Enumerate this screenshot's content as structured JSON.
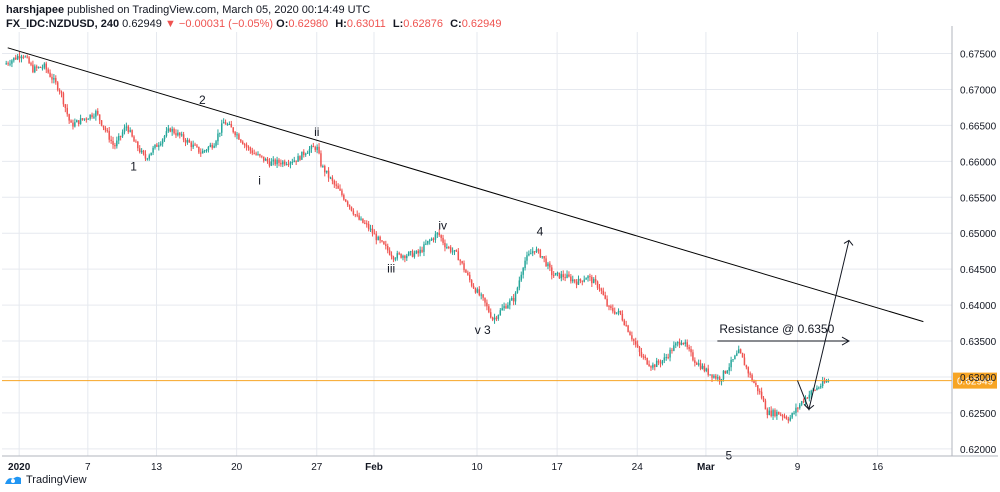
{
  "header": {
    "author": "harshjapee",
    "published": "published on TradingView.com, March 05, 2020 00:14:49 UTC"
  },
  "ohlc": {
    "symbol": "FX_IDC:NZDUSD, 240",
    "last": "0.62949",
    "change": "▼ −0.00031 (−0.05%)",
    "o_label": "O:",
    "o": "0.62980",
    "h_label": "H:",
    "h": "0.63011",
    "l_label": "L:",
    "l": "0.62876",
    "c_label": "C:",
    "c": "0.62949"
  },
  "footer": {
    "brand": "TradingView"
  },
  "colors": {
    "up": "#26a69a",
    "down": "#ef5350",
    "price_line": "#f7a525",
    "grid": "#e6e9ef",
    "trend": "#000000"
  },
  "chart_data": {
    "type": "candlestick",
    "title": "FX_IDC:NZDUSD, 240",
    "y_ticks": [
      "0.67500",
      "0.67000",
      "0.66500",
      "0.66000",
      "0.65500",
      "0.65000",
      "0.64500",
      "0.64000",
      "0.63500",
      "0.63000",
      "0.62500",
      "0.62000"
    ],
    "ylim": [
      0.619,
      0.678
    ],
    "x_ticks": [
      "2020",
      "7",
      "13",
      "20",
      "27",
      "Feb",
      "10",
      "17",
      "24",
      "Mar",
      "9",
      "16"
    ],
    "x_tick_days": [
      1,
      7,
      13,
      20,
      27,
      32,
      41,
      48,
      55,
      61,
      69,
      76
    ],
    "xlim": [
      -0.5,
      82.5
    ],
    "last_price": 0.62949,
    "last_price_label": "0.62949",
    "close_path": [
      [
        -0.3,
        0.6735
      ],
      [
        1.3,
        0.675
      ],
      [
        2.2,
        0.6728
      ],
      [
        3.2,
        0.6732
      ],
      [
        4.6,
        0.6698
      ],
      [
        5.5,
        0.665
      ],
      [
        6.5,
        0.6658
      ],
      [
        7.7,
        0.6668
      ],
      [
        8.5,
        0.6645
      ],
      [
        9.3,
        0.662
      ],
      [
        10.4,
        0.665
      ],
      [
        11.0,
        0.6628
      ],
      [
        12.0,
        0.6604
      ],
      [
        13.0,
        0.6622
      ],
      [
        14.2,
        0.6645
      ],
      [
        15.5,
        0.663
      ],
      [
        16.9,
        0.6612
      ],
      [
        18.0,
        0.6625
      ],
      [
        18.9,
        0.6655
      ],
      [
        19.9,
        0.664
      ],
      [
        21.0,
        0.6618
      ],
      [
        21.8,
        0.6608
      ],
      [
        22.9,
        0.6598
      ],
      [
        24.1,
        0.6599
      ],
      [
        25.3,
        0.6603
      ],
      [
        26.1,
        0.6615
      ],
      [
        27.0,
        0.662
      ],
      [
        27.4,
        0.6594
      ],
      [
        28.5,
        0.6568
      ],
      [
        29.6,
        0.6545
      ],
      [
        30.6,
        0.652
      ],
      [
        31.4,
        0.651
      ],
      [
        32.5,
        0.6488
      ],
      [
        33.7,
        0.6468
      ],
      [
        34.8,
        0.647
      ],
      [
        35.9,
        0.6472
      ],
      [
        36.7,
        0.6487
      ],
      [
        37.6,
        0.65
      ],
      [
        38.2,
        0.6484
      ],
      [
        39.3,
        0.6469
      ],
      [
        40.5,
        0.643
      ],
      [
        41.6,
        0.6405
      ],
      [
        42.4,
        0.638
      ],
      [
        43.4,
        0.6398
      ],
      [
        44.3,
        0.641
      ],
      [
        45.1,
        0.646
      ],
      [
        46.0,
        0.6478
      ],
      [
        46.7,
        0.6468
      ],
      [
        47.6,
        0.6442
      ],
      [
        48.7,
        0.644
      ],
      [
        49.8,
        0.6432
      ],
      [
        50.6,
        0.644
      ],
      [
        51.7,
        0.6425
      ],
      [
        52.5,
        0.6395
      ],
      [
        53.5,
        0.6388
      ],
      [
        54.3,
        0.6363
      ],
      [
        55.3,
        0.633
      ],
      [
        56.3,
        0.6315
      ],
      [
        57.4,
        0.6325
      ],
      [
        58.1,
        0.634
      ],
      [
        58.9,
        0.6352
      ],
      [
        59.9,
        0.6325
      ],
      [
        61.1,
        0.6307
      ],
      [
        62.2,
        0.6297
      ],
      [
        63.1,
        0.6317
      ],
      [
        63.9,
        0.6335
      ],
      [
        64.9,
        0.63
      ],
      [
        65.8,
        0.6275
      ],
      [
        66.4,
        0.625
      ],
      [
        67.3,
        0.625
      ],
      [
        68.3,
        0.6242
      ],
      [
        69.5,
        0.6268
      ],
      [
        70.3,
        0.628
      ],
      [
        71.0,
        0.6288
      ],
      [
        71.7,
        0.6295
      ]
    ],
    "trendline": [
      [
        0.0,
        0.6758
      ],
      [
        80.0,
        0.6377
      ]
    ],
    "wave_labels": [
      {
        "text": "2",
        "x": 17.0,
        "y": 0.668
      },
      {
        "text": "1",
        "x": 11.0,
        "y": 0.6587
      },
      {
        "text": "ii",
        "x": 27.0,
        "y": 0.6635
      },
      {
        "text": "i",
        "x": 22.0,
        "y": 0.6568
      },
      {
        "text": "iv",
        "x": 38.0,
        "y": 0.6505
      },
      {
        "text": "iii",
        "x": 33.5,
        "y": 0.6445
      },
      {
        "text": "4",
        "x": 46.5,
        "y": 0.6497
      },
      {
        "text": "v 3",
        "x": 41.5,
        "y": 0.636
      },
      {
        "text": "5",
        "x": 63.0,
        "y": 0.6185
      }
    ],
    "resistance": {
      "text": "Resistance @ 0.6350",
      "level": 0.635,
      "x_start": 62.0,
      "x_end": 73.5
    },
    "projection": [
      [
        69.0,
        0.6295
      ],
      [
        70.0,
        0.6255
      ],
      [
        73.5,
        0.649
      ]
    ]
  }
}
